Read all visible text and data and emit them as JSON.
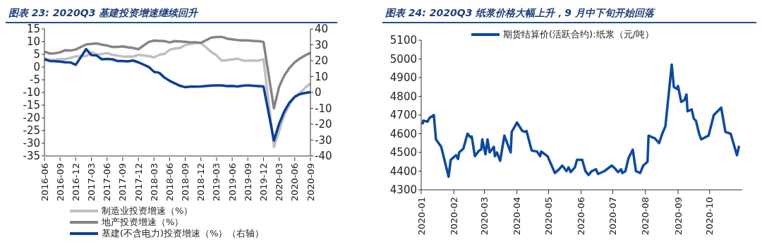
{
  "chart_data": [
    {
      "type": "line",
      "title": "图表 23:  2020Q3 基建投资增速继续回升",
      "categories": [
        "2016-06",
        null,
        null,
        "2016-09",
        null,
        null,
        "2016-12",
        null,
        null,
        "2017-03",
        null,
        null,
        "2017-06",
        null,
        null,
        "2017-09",
        null,
        null,
        "2017-12",
        null,
        null,
        "2018-03",
        null,
        null,
        "2018-06",
        null,
        null,
        "2018-09",
        null,
        null,
        "2018-12",
        null,
        null,
        "2019-03",
        null,
        null,
        "2019-06",
        null,
        null,
        "2019-09",
        null,
        null,
        "2019-12",
        null,
        null,
        "2020-03",
        null,
        null,
        "2020-06",
        null,
        null,
        "2020-09"
      ],
      "series": [
        {
          "name": "制造业投资增速（%）",
          "color": "#c0c0c0",
          "values": [
            3.3,
            2.9,
            2.8,
            3.1,
            3.1,
            3.6,
            4.2,
            null,
            4.3,
            5.8,
            5.0,
            5.1,
            5.5,
            4.8,
            4.5,
            4.2,
            4.1,
            4.1,
            4.8,
            null,
            4.3,
            3.8,
            4.8,
            5.2,
            6.8,
            7.3,
            7.5,
            8.7,
            9.1,
            9.5,
            9.5,
            null,
            5.9,
            4.6,
            2.5,
            2.7,
            3.0,
            3.3,
            2.6,
            2.5,
            2.6,
            2.5,
            3.1,
            null,
            -31.5,
            -25.2,
            -18.8,
            -14.8,
            -11.7,
            -10.2,
            -8.1,
            -6.5
          ]
        },
        {
          "name": "地产投资增速（%）",
          "color": "#858585",
          "values": [
            6.1,
            5.3,
            5.4,
            5.8,
            6.6,
            6.5,
            6.9,
            null,
            8.9,
            9.1,
            9.3,
            8.8,
            8.5,
            7.9,
            7.9,
            8.1,
            7.8,
            7.5,
            7.0,
            null,
            9.9,
            10.4,
            10.3,
            10.2,
            9.7,
            10.2,
            10.1,
            9.9,
            9.7,
            9.7,
            9.5,
            null,
            11.6,
            11.8,
            11.9,
            11.2,
            10.9,
            10.6,
            10.5,
            10.5,
            10.3,
            10.2,
            9.9,
            null,
            -16.3,
            -7.7,
            -3.3,
            -0.3,
            1.9,
            3.4,
            4.6,
            5.6
          ]
        },
        {
          "name": "基建(不含电力)投资增速（%）（右轴）",
          "color": "#0b3f99",
          "axis": "y2",
          "values": [
            20.9,
            19.8,
            19.7,
            19.4,
            19.0,
            18.9,
            17.4,
            null,
            27.3,
            23.5,
            23.3,
            20.9,
            21.1,
            20.9,
            19.8,
            19.8,
            19.6,
            20.1,
            19.0,
            null,
            16.1,
            13.0,
            12.4,
            9.4,
            7.3,
            5.7,
            4.2,
            3.3,
            3.7,
            3.7,
            3.8,
            null,
            4.3,
            4.4,
            4.4,
            4.0,
            4.1,
            3.8,
            4.2,
            4.5,
            4.2,
            4.0,
            3.8,
            null,
            -30.3,
            -19.7,
            -11.8,
            -6.3,
            -2.7,
            -1.0,
            -0.3,
            0.2
          ]
        }
      ],
      "ylim": [
        -35,
        15
      ],
      "yticks": [
        -35,
        -30,
        -25,
        -20,
        -15,
        -10,
        -5,
        0,
        5,
        10,
        15
      ],
      "y2lim": [
        -40,
        40
      ],
      "y2ticks": [
        -40,
        -30,
        -20,
        -10,
        0,
        10,
        20,
        30,
        40
      ],
      "legend": "bottom",
      "grid": false
    },
    {
      "type": "line",
      "title": "图表 24:  2020Q3 纸浆价格大幅上升，9 月中下旬开始回落",
      "x": [
        "2020-01-02",
        "2020-01-03",
        "2020-01-07",
        "2020-01-09",
        "2020-01-13",
        "2020-01-15",
        "2020-01-20",
        "2020-01-27",
        "2020-01-29",
        "2020-02-03",
        "2020-02-05",
        "2020-02-06",
        "2020-02-10",
        "2020-02-14",
        "2020-02-17",
        "2020-02-18",
        "2020-02-21",
        "2020-02-25",
        "2020-02-27",
        "2020-02-28",
        "2020-03-02",
        "2020-03-04",
        "2020-03-06",
        "2020-03-10",
        "2020-03-11",
        "2020-03-13",
        "2020-03-16",
        "2020-03-20",
        "2020-03-26",
        "2020-03-27",
        "2020-04-01",
        "2020-04-06",
        "2020-04-09",
        "2020-04-10",
        "2020-04-15",
        "2020-04-20",
        "2020-04-23",
        "2020-04-24",
        "2020-04-30",
        "2020-05-07",
        "2020-05-11",
        "2020-05-14",
        "2020-05-18",
        "2020-05-20",
        "2020-05-22",
        "2020-05-26",
        "2020-05-28",
        "2020-06-02",
        "2020-06-05",
        "2020-06-08",
        "2020-06-11",
        "2020-06-15",
        "2020-06-17",
        "2020-06-23",
        "2020-06-30",
        "2020-07-03",
        "2020-07-06",
        "2020-07-09",
        "2020-07-10",
        "2020-07-13",
        "2020-07-16",
        "2020-07-20",
        "2020-07-23",
        "2020-07-27",
        "2020-07-30",
        "2020-08-03",
        "2020-08-04",
        "2020-08-10",
        "2020-08-14",
        "2020-08-17",
        "2020-08-20",
        "2020-08-26",
        "2020-08-28",
        "2020-08-31",
        "2020-09-01",
        "2020-09-04",
        "2020-09-07",
        "2020-09-09",
        "2020-09-10",
        "2020-09-14",
        "2020-09-16",
        "2020-09-18",
        "2020-09-21",
        "2020-09-23",
        "2020-09-30",
        "2020-10-05",
        "2020-10-12",
        "2020-10-16",
        "2020-10-21",
        "2020-10-27",
        "2020-10-29"
      ],
      "series": [
        {
          "name": "期货结算价(活跃合约):纸浆（元/吨）",
          "color": "#0d4a9e",
          "values": [
            4650,
            4670,
            4665,
            4685,
            4700,
            4570,
            4530,
            4370,
            4460,
            4485,
            4465,
            4500,
            4520,
            4600,
            4580,
            4585,
            4480,
            4510,
            4515,
            4570,
            4490,
            4570,
            4500,
            4530,
            4480,
            4500,
            4455,
            4590,
            4500,
            4610,
            4660,
            4615,
            4610,
            4615,
            4510,
            4505,
            4480,
            4505,
            4480,
            4390,
            4410,
            4430,
            4400,
            4420,
            4395,
            4420,
            4460,
            4460,
            4400,
            4380,
            4400,
            4410,
            4385,
            4400,
            4430,
            4415,
            4395,
            4410,
            4390,
            4400,
            4470,
            4515,
            4400,
            4390,
            4430,
            4450,
            4590,
            4575,
            4550,
            4600,
            4640,
            4970,
            4850,
            4840,
            4855,
            4770,
            4780,
            4810,
            4720,
            4730,
            4680,
            4670,
            4600,
            4570,
            4590,
            4700,
            4740,
            4610,
            4600,
            4485,
            4535
          ]
        }
      ],
      "xlim": [
        "2020-01-01",
        "2020-11-01"
      ],
      "xticks": [
        "2020-01",
        "2020-02",
        "2020-03",
        "2020-04",
        "2020-05",
        "2020-06",
        "2020-07",
        "2020-08",
        "2020-09",
        "2020-10"
      ],
      "ylim": [
        4300,
        5100
      ],
      "yticks": [
        4300,
        4400,
        4500,
        4600,
        4700,
        4800,
        4900,
        5000,
        5100
      ],
      "legend": "top",
      "grid": false
    }
  ]
}
